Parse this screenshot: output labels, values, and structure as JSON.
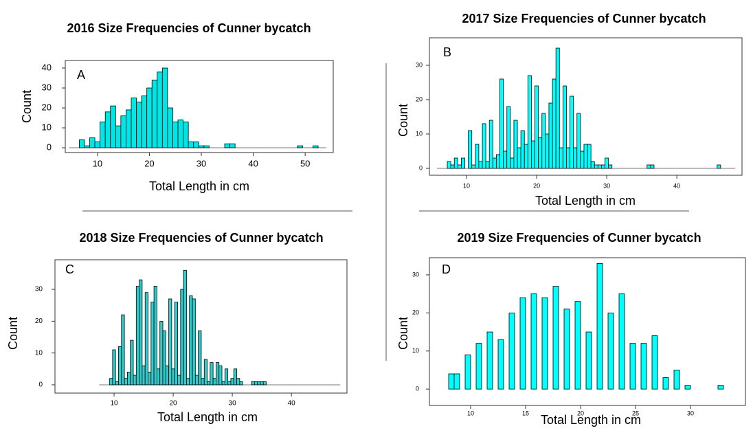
{
  "chart_data": [
    {
      "type": "histogram",
      "title": "2016 Size Frequencies of Cunner bycatch",
      "panel_label": "A",
      "xlabel": "Total Length in cm",
      "ylabel": "Count",
      "color": "#00e6e6",
      "bins": [
        6.5,
        7.5,
        8.5,
        9.5,
        10.5,
        11.5,
        12.5,
        13.5,
        14.5,
        15.5,
        16.5,
        17.5,
        18.5,
        19.5,
        20.5,
        21.5,
        22.5,
        23.5,
        24.5,
        25.5,
        26.5,
        27.5,
        28.5,
        29.5,
        30.5,
        31.5,
        32.5,
        33.5,
        34.5,
        35.5,
        36.5,
        37.5,
        38.5,
        39.5,
        40.5,
        41.5,
        42.5,
        43.5,
        44.5,
        45.5,
        46.5,
        47.5,
        48.5,
        49.5,
        50.5,
        51.5,
        52.5,
        53.5
      ],
      "values": [
        4,
        1,
        5,
        3,
        13,
        18,
        21,
        11,
        16,
        19,
        25,
        23,
        26,
        30,
        34,
        38,
        40,
        20,
        13,
        14,
        13,
        3,
        3,
        1,
        1,
        0,
        0,
        0,
        2,
        2,
        0,
        0,
        0,
        0,
        0,
        0,
        0,
        0,
        0,
        0,
        0,
        0,
        1,
        0,
        0,
        1,
        0
      ],
      "xlim": [
        3.8,
        55.4
      ],
      "ylim": [
        -2.4,
        43.8
      ],
      "xticks": [
        10,
        20,
        30,
        40,
        50
      ],
      "yticks": [
        0,
        10,
        20,
        30,
        40
      ]
    },
    {
      "type": "histogram",
      "title": "2017 Size Frequencies of Cunner bycatch",
      "panel_label": "B",
      "xlabel": "Total Length in cm",
      "ylabel": "Count",
      "color": "#00ffff",
      "bins": [
        7.25,
        7.75,
        8.25,
        8.75,
        9.25,
        9.75,
        10.25,
        10.75,
        11.25,
        11.75,
        12.25,
        12.75,
        13.25,
        13.75,
        14.25,
        14.75,
        15.25,
        15.75,
        16.25,
        16.75,
        17.25,
        17.75,
        18.25,
        18.75,
        19.25,
        19.75,
        20.25,
        20.75,
        21.25,
        21.75,
        22.25,
        22.75,
        23.25,
        23.75,
        24.25,
        24.75,
        25.25,
        25.75,
        26.25,
        26.75,
        27.25,
        27.75,
        28.25,
        28.75,
        29.25,
        29.75,
        30.25,
        30.75,
        31.25,
        31.75,
        32.25,
        32.75,
        33.25,
        33.75,
        34.25,
        34.75,
        35.25,
        35.75,
        36.25,
        36.75,
        37.25,
        37.75,
        38.25,
        38.75,
        39.25,
        39.75,
        40.25,
        40.75,
        41.25,
        41.75,
        42.25,
        42.75,
        43.25,
        43.75,
        44.25,
        44.75,
        45.25,
        45.75,
        46.25
      ],
      "values": [
        2,
        1,
        3,
        1,
        3,
        0,
        11,
        1,
        7,
        2,
        13,
        2,
        14,
        3,
        4,
        26,
        5,
        18,
        3,
        14,
        6,
        11,
        7,
        27,
        8,
        24,
        9,
        16,
        10,
        19,
        26,
        35,
        6,
        24,
        6,
        21,
        6,
        16,
        5,
        7,
        7,
        2,
        1,
        1,
        1,
        3,
        1,
        0,
        0,
        0,
        0,
        0,
        0,
        0,
        0,
        0,
        0,
        1,
        1,
        0,
        0,
        0,
        0,
        0,
        0,
        0,
        0,
        0,
        0,
        0,
        0,
        0,
        0,
        0,
        0,
        0,
        0,
        1
      ],
      "xlim": [
        4.7,
        49.3
      ],
      "ylim": [
        -2,
        38
      ],
      "xticks": [
        10,
        20,
        30,
        40
      ],
      "yticks": [
        0,
        10,
        20,
        30
      ]
    },
    {
      "type": "histogram",
      "title": "2018 Size Frequencies of Cunner bycatch",
      "panel_label": "C",
      "xlabel": "Total Length in cm",
      "ylabel": "Count",
      "color": "#33cccc",
      "bins": [
        9.25,
        9.75,
        10.25,
        10.75,
        11.25,
        11.75,
        12.25,
        12.75,
        13.25,
        13.75,
        14.25,
        14.75,
        15.25,
        15.75,
        16.25,
        16.75,
        17.25,
        17.75,
        18.25,
        18.75,
        19.25,
        19.75,
        20.25,
        20.75,
        21.25,
        21.75,
        22.25,
        22.75,
        23.25,
        23.75,
        24.25,
        24.75,
        25.25,
        25.75,
        26.25,
        26.75,
        27.25,
        27.75,
        28.25,
        28.75,
        29.25,
        29.75,
        30.25,
        30.75,
        31.25,
        31.75,
        32.25,
        32.75,
        33.25,
        33.75,
        34.25,
        34.75,
        35.25,
        35.75,
        36.25
      ],
      "values": [
        2,
        11,
        1,
        12,
        22,
        2,
        4,
        14,
        3,
        31,
        33,
        6,
        29,
        4,
        26,
        31,
        5,
        20,
        17,
        6,
        27,
        5,
        26,
        3,
        30,
        36,
        2,
        28,
        27,
        3,
        17,
        2,
        8,
        1,
        7,
        2,
        7,
        6,
        1,
        5,
        1,
        2,
        5,
        2,
        1,
        0,
        0,
        0,
        1,
        1,
        1,
        1,
        1,
        0
      ],
      "xlim": [
        0,
        49.4
      ],
      "ylim": [
        -2.6,
        39.3
      ],
      "xticks": [
        10,
        20,
        30,
        40
      ],
      "yticks": [
        0,
        10,
        20,
        30
      ]
    },
    {
      "type": "bar",
      "title": "2019 Size Frequencies of Cunner bycatch",
      "panel_label": "D",
      "xlabel": "Total Length in cm",
      "ylabel": "Count",
      "color": "#00ffff",
      "x": [
        8.25,
        8.75,
        9.75,
        10.75,
        11.75,
        12.75,
        13.75,
        14.75,
        15.75,
        16.75,
        17.75,
        18.75,
        19.75,
        20.75,
        21.75,
        22.75,
        23.75,
        24.75,
        25.75,
        26.75,
        27.75,
        28.75,
        29.75,
        32.75
      ],
      "values": [
        4,
        4,
        9,
        12,
        15,
        13,
        20,
        24,
        25,
        24,
        27,
        21,
        23,
        15,
        33,
        20,
        25,
        12,
        12,
        14,
        3,
        5,
        1,
        1
      ],
      "xlim": [
        6.25,
        35
      ],
      "ylim": [
        -4.3,
        34.5
      ],
      "xticks": [
        10,
        15,
        20,
        25,
        30
      ],
      "yticks": [
        0,
        10,
        20,
        30
      ]
    }
  ]
}
